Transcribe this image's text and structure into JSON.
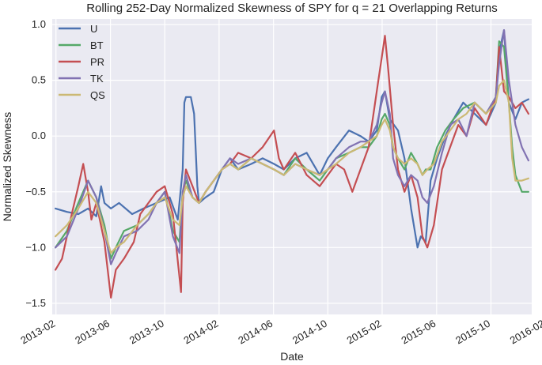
{
  "chart_data": {
    "type": "line",
    "title": "Rolling 252-Day Normalized Skewness of SPY for q = 21 Overlapping Returns",
    "xlabel": "Date",
    "ylabel": "Normalized Skewness",
    "xlim": [
      2013.06,
      2016.0
    ],
    "ylim": [
      -1.6,
      1.05
    ],
    "grid": true,
    "legend_position": "top-left",
    "x_ticks": [
      {
        "value": 2013.083,
        "label": "2013-02"
      },
      {
        "value": 2013.417,
        "label": "2013-06"
      },
      {
        "value": 2013.75,
        "label": "2013-10"
      },
      {
        "value": 2014.083,
        "label": "2014-02"
      },
      {
        "value": 2014.417,
        "label": "2014-06"
      },
      {
        "value": 2014.75,
        "label": "2014-10"
      },
      {
        "value": 2015.083,
        "label": "2015-02"
      },
      {
        "value": 2015.417,
        "label": "2015-06"
      },
      {
        "value": 2015.75,
        "label": "2015-10"
      },
      {
        "value": 2016.083,
        "label": "2016-02"
      }
    ],
    "y_ticks": [
      {
        "value": -1.5,
        "label": "−1.5"
      },
      {
        "value": -1.0,
        "label": "−1.0"
      },
      {
        "value": -0.5,
        "label": "−0.5"
      },
      {
        "value": 0.0,
        "label": "0.0"
      },
      {
        "value": 0.5,
        "label": "0.5"
      },
      {
        "value": 1.0,
        "label": "1.0"
      }
    ],
    "series": [
      {
        "name": "U",
        "color": "#4c72b0",
        "x": [
          2013.08,
          2013.15,
          2013.22,
          2013.28,
          2013.33,
          2013.36,
          2013.38,
          2013.42,
          2013.47,
          2013.55,
          2013.62,
          2013.7,
          2013.78,
          2013.83,
          2013.86,
          2013.87,
          2013.88,
          2013.91,
          2013.93,
          2013.95,
          2013.96,
          2014.0,
          2014.05,
          2014.1,
          2014.15,
          2014.2,
          2014.28,
          2014.35,
          2014.42,
          2014.48,
          2014.55,
          2014.62,
          2014.7,
          2014.75,
          2014.8,
          2014.88,
          2014.95,
          2015.0,
          2015.05,
          2015.08,
          2015.1,
          2015.13,
          2015.18,
          2015.22,
          2015.26,
          2015.3,
          2015.32,
          2015.35,
          2015.38,
          2015.42,
          2015.47,
          2015.52,
          2015.58,
          2015.65,
          2015.72,
          2015.78,
          2015.8,
          2015.83,
          2015.86,
          2015.9,
          2015.94,
          2015.98
        ],
        "values": [
          -0.65,
          -0.68,
          -0.7,
          -0.65,
          -0.72,
          -0.45,
          -0.6,
          -0.65,
          -0.6,
          -0.7,
          -0.65,
          -0.6,
          -0.55,
          -0.75,
          -0.3,
          0.3,
          0.35,
          0.35,
          0.2,
          -0.45,
          -0.6,
          -0.55,
          -0.5,
          -0.3,
          -0.2,
          -0.3,
          -0.25,
          -0.2,
          -0.25,
          -0.3,
          -0.2,
          -0.15,
          -0.35,
          -0.2,
          -0.1,
          0.05,
          0.0,
          -0.05,
          0.05,
          0.35,
          0.4,
          0.15,
          0.05,
          -0.2,
          -0.65,
          -1.0,
          -0.9,
          -0.95,
          -0.4,
          -0.2,
          0.0,
          0.15,
          0.3,
          0.2,
          0.1,
          0.3,
          0.75,
          0.95,
          0.3,
          0.15,
          0.3,
          0.33
        ]
      },
      {
        "name": "BT",
        "color": "#55a868",
        "x": [
          2013.08,
          2013.15,
          2013.22,
          2013.28,
          2013.33,
          2013.38,
          2013.42,
          2013.45,
          2013.5,
          2013.58,
          2013.65,
          2013.7,
          2013.75,
          2013.8,
          2013.84,
          2013.86,
          2013.88,
          2013.92,
          2013.96,
          2014.0,
          2014.05,
          2014.1,
          2014.15,
          2014.2,
          2014.28,
          2014.35,
          2014.42,
          2014.48,
          2014.55,
          2014.62,
          2014.7,
          2014.75,
          2014.8,
          2014.88,
          2014.95,
          2015.0,
          2015.05,
          2015.08,
          2015.1,
          2015.13,
          2015.15,
          2015.18,
          2015.22,
          2015.26,
          2015.3,
          2015.33,
          2015.35,
          2015.38,
          2015.42,
          2015.47,
          2015.52,
          2015.58,
          2015.65,
          2015.72,
          2015.78,
          2015.8,
          2015.83,
          2015.86,
          2015.88,
          2015.9,
          2015.94,
          2015.98
        ],
        "values": [
          -1.0,
          -0.85,
          -0.6,
          -0.4,
          -0.55,
          -0.8,
          -1.1,
          -1.0,
          -0.85,
          -0.8,
          -0.7,
          -0.6,
          -0.5,
          -0.85,
          -0.95,
          -0.5,
          -0.4,
          -0.55,
          -0.6,
          -0.5,
          -0.4,
          -0.3,
          -0.25,
          -0.3,
          -0.2,
          -0.25,
          -0.3,
          -0.35,
          -0.2,
          -0.3,
          -0.4,
          -0.3,
          -0.2,
          -0.15,
          -0.1,
          -0.1,
          0.0,
          0.15,
          0.2,
          0.1,
          -0.1,
          -0.2,
          -0.3,
          -0.15,
          -0.25,
          -0.35,
          -0.3,
          -0.3,
          -0.1,
          0.05,
          0.15,
          0.25,
          0.3,
          0.2,
          0.35,
          0.85,
          0.8,
          0.3,
          -0.1,
          -0.35,
          -0.5,
          -0.5
        ]
      },
      {
        "name": "PR",
        "color": "#c44e52",
        "x": [
          2013.08,
          2013.12,
          2013.18,
          2013.22,
          2013.25,
          2013.28,
          2013.3,
          2013.33,
          2013.38,
          2013.42,
          2013.45,
          2013.5,
          2013.56,
          2013.6,
          2013.65,
          2013.7,
          2013.75,
          2013.8,
          2013.85,
          2013.86,
          2013.88,
          2013.92,
          2013.96,
          2014.0,
          2014.05,
          2014.1,
          2014.15,
          2014.2,
          2014.28,
          2014.35,
          2014.42,
          2014.45,
          2014.48,
          2014.55,
          2014.62,
          2014.7,
          2014.75,
          2014.8,
          2014.85,
          2014.9,
          2014.95,
          2015.0,
          2015.04,
          2015.06,
          2015.08,
          2015.1,
          2015.12,
          2015.15,
          2015.18,
          2015.22,
          2015.26,
          2015.3,
          2015.33,
          2015.36,
          2015.4,
          2015.45,
          2015.5,
          2015.55,
          2015.6,
          2015.65,
          2015.72,
          2015.78,
          2015.8,
          2015.83,
          2015.86,
          2015.9,
          2015.94,
          2015.98
        ],
        "values": [
          -1.2,
          -1.1,
          -0.7,
          -0.45,
          -0.25,
          -0.5,
          -0.75,
          -0.6,
          -0.95,
          -1.45,
          -1.2,
          -1.1,
          -0.95,
          -0.7,
          -0.6,
          -0.5,
          -0.45,
          -0.7,
          -1.4,
          -0.6,
          -0.3,
          -0.45,
          -0.6,
          -0.5,
          -0.4,
          -0.3,
          -0.25,
          -0.15,
          -0.2,
          -0.1,
          0.05,
          -0.2,
          -0.3,
          -0.15,
          -0.35,
          -0.45,
          -0.35,
          -0.25,
          -0.3,
          -0.5,
          -0.3,
          -0.1,
          0.3,
          0.5,
          0.7,
          0.9,
          0.6,
          0.1,
          -0.3,
          -0.5,
          -0.35,
          -0.55,
          -0.9,
          -1.0,
          -0.8,
          -0.3,
          -0.1,
          0.1,
          0.0,
          0.25,
          0.1,
          0.35,
          0.8,
          0.4,
          0.35,
          0.25,
          0.3,
          0.2
        ]
      },
      {
        "name": "TK",
        "color": "#8172b2",
        "x": [
          2013.08,
          2013.15,
          2013.22,
          2013.28,
          2013.33,
          2013.38,
          2013.42,
          2013.45,
          2013.5,
          2013.58,
          2013.65,
          2013.7,
          2013.75,
          2013.8,
          2013.84,
          2013.86,
          2013.88,
          2013.92,
          2013.96,
          2014.0,
          2014.05,
          2014.1,
          2014.15,
          2014.2,
          2014.28,
          2014.35,
          2014.42,
          2014.48,
          2014.55,
          2014.62,
          2014.7,
          2014.75,
          2014.8,
          2014.88,
          2014.95,
          2015.0,
          2015.05,
          2015.08,
          2015.1,
          2015.13,
          2015.15,
          2015.18,
          2015.22,
          2015.26,
          2015.3,
          2015.33,
          2015.36,
          2015.4,
          2015.45,
          2015.5,
          2015.55,
          2015.6,
          2015.65,
          2015.72,
          2015.78,
          2015.8,
          2015.83,
          2015.86,
          2015.9,
          2015.94,
          2015.98
        ],
        "values": [
          -1.0,
          -0.9,
          -0.65,
          -0.4,
          -0.55,
          -0.85,
          -1.15,
          -1.05,
          -0.9,
          -0.85,
          -0.75,
          -0.6,
          -0.5,
          -0.9,
          -1.05,
          -0.5,
          -0.35,
          -0.55,
          -0.6,
          -0.5,
          -0.4,
          -0.3,
          -0.2,
          -0.25,
          -0.2,
          -0.25,
          -0.3,
          -0.35,
          -0.25,
          -0.3,
          -0.35,
          -0.3,
          -0.2,
          -0.1,
          -0.05,
          -0.05,
          0.1,
          0.3,
          0.4,
          0.2,
          -0.2,
          -0.35,
          -0.45,
          -0.35,
          -0.4,
          -0.55,
          -0.6,
          -0.45,
          -0.15,
          0.1,
          0.15,
          0.0,
          0.3,
          0.2,
          0.35,
          0.65,
          0.95,
          0.5,
          0.1,
          -0.1,
          -0.22
        ]
      },
      {
        "name": "QS",
        "color": "#ccb974",
        "x": [
          2013.08,
          2013.15,
          2013.22,
          2013.28,
          2013.33,
          2013.38,
          2013.42,
          2013.45,
          2013.5,
          2013.58,
          2013.65,
          2013.7,
          2013.75,
          2013.8,
          2013.84,
          2013.86,
          2013.88,
          2013.92,
          2013.96,
          2014.0,
          2014.05,
          2014.1,
          2014.15,
          2014.2,
          2014.28,
          2014.35,
          2014.42,
          2014.48,
          2014.55,
          2014.62,
          2014.7,
          2014.75,
          2014.8,
          2014.88,
          2014.95,
          2015.0,
          2015.05,
          2015.08,
          2015.1,
          2015.13,
          2015.15,
          2015.18,
          2015.22,
          2015.26,
          2015.3,
          2015.33,
          2015.36,
          2015.4,
          2015.45,
          2015.5,
          2015.55,
          2015.6,
          2015.65,
          2015.72,
          2015.78,
          2015.8,
          2015.83,
          2015.86,
          2015.88,
          2015.9,
          2015.94,
          2015.98
        ],
        "values": [
          -0.9,
          -0.8,
          -0.65,
          -0.5,
          -0.6,
          -0.85,
          -1.05,
          -1.0,
          -0.95,
          -0.8,
          -0.7,
          -0.6,
          -0.55,
          -0.75,
          -0.8,
          -0.55,
          -0.45,
          -0.55,
          -0.6,
          -0.5,
          -0.4,
          -0.3,
          -0.25,
          -0.3,
          -0.2,
          -0.25,
          -0.3,
          -0.35,
          -0.25,
          -0.3,
          -0.35,
          -0.3,
          -0.25,
          -0.15,
          -0.1,
          -0.05,
          0.0,
          0.1,
          0.15,
          0.05,
          -0.1,
          -0.2,
          -0.25,
          -0.2,
          -0.25,
          -0.35,
          -0.3,
          -0.25,
          -0.05,
          0.05,
          0.15,
          0.2,
          0.3,
          0.2,
          0.3,
          0.45,
          0.5,
          0.3,
          -0.2,
          -0.4,
          -0.4,
          -0.38
        ]
      }
    ]
  }
}
